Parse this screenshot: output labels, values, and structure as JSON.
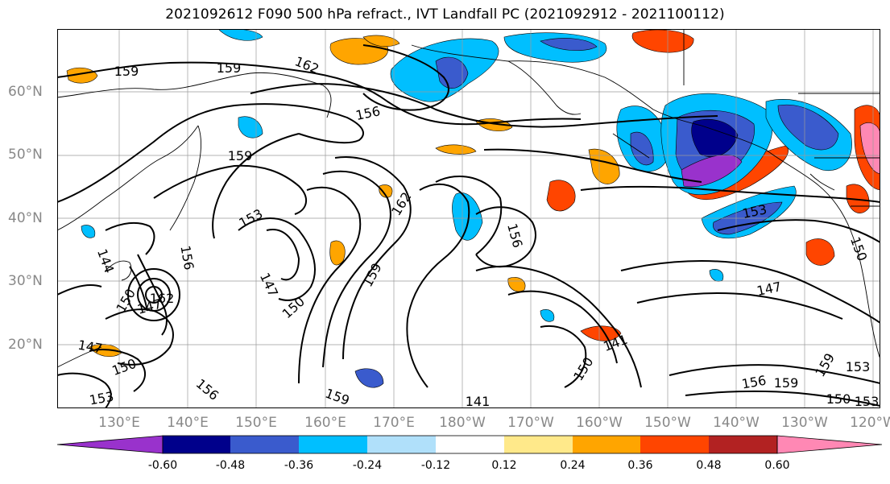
{
  "title": "2021092612 F090 500 hPa refract., IVT Landfall PC (2021092912 - 2021100112)",
  "lat_labels": [
    "60°N",
    "50°N",
    "40°N",
    "30°N",
    "20°N"
  ],
  "lon_labels": [
    "130°E",
    "140°E",
    "150°E",
    "160°E",
    "170°E",
    "180°W",
    "170°W",
    "160°W",
    "150°W",
    "140°W",
    "130°W",
    "120°W"
  ],
  "colorbar": {
    "ticks": [
      "-0.60",
      "-0.48",
      "-0.36",
      "-0.24",
      "-0.12",
      "0.12",
      "0.24",
      "0.36",
      "0.48",
      "0.60"
    ],
    "colors": [
      "#9932cc",
      "#00008b",
      "#3a5bcd",
      "#00bfff",
      "#b0e0fa",
      "#ffffff",
      "#ffe98a",
      "#ffa500",
      "#ff4500",
      "#b22222",
      "#ff88b4"
    ]
  },
  "contour_labels": [
    "159",
    "159",
    "162",
    "156",
    "159",
    "162",
    "153",
    "156",
    "147",
    "150",
    "159",
    "153",
    "147",
    "150",
    "156",
    "159",
    "141",
    "150",
    "147",
    "141",
    "156",
    "159",
    "153",
    "150",
    "153",
    "150",
    "144",
    "147",
    "150",
    "156",
    "153",
    "159",
    "162"
  ]
}
